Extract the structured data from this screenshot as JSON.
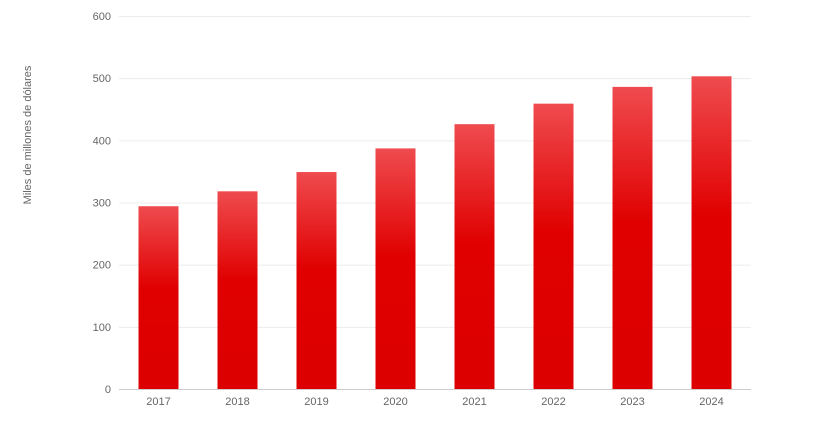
{
  "chart_data": {
    "type": "bar",
    "title": "",
    "xlabel": "",
    "ylabel": "Miles de millones de dólares",
    "categories": [
      "2017",
      "2018",
      "2019",
      "2020",
      "2021",
      "2022",
      "2023",
      "2024"
    ],
    "values": [
      294,
      318,
      349,
      387,
      426,
      459,
      486,
      503
    ],
    "ylim": [
      0,
      600
    ],
    "yticks": [
      "0",
      "100",
      "200",
      "300",
      "400",
      "500",
      "600"
    ],
    "grid": true,
    "legend": "none",
    "colors": {
      "bar_top": "#ef4b4f",
      "bar_mid": "#e00000",
      "bar_bottom": "#dc0000"
    }
  }
}
